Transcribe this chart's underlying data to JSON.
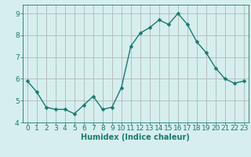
{
  "x": [
    0,
    1,
    2,
    3,
    4,
    5,
    6,
    7,
    8,
    9,
    10,
    11,
    12,
    13,
    14,
    15,
    16,
    17,
    18,
    19,
    20,
    21,
    22,
    23
  ],
  "y": [
    5.9,
    5.4,
    4.7,
    4.6,
    4.6,
    4.4,
    4.8,
    5.2,
    4.6,
    4.7,
    5.6,
    7.5,
    8.1,
    8.35,
    8.7,
    8.5,
    9.0,
    8.5,
    7.7,
    7.2,
    6.5,
    6.0,
    5.8,
    5.9
  ],
  "line_color": "#1a7a6e",
  "marker": "D",
  "marker_size": 2.5,
  "bg_color": "#d6eeee",
  "grid_color": "#b0b8b8",
  "xlabel": "Humidex (Indice chaleur)",
  "ylim": [
    4,
    9.4
  ],
  "xlim": [
    -0.5,
    23.5
  ],
  "yticks": [
    4,
    5,
    6,
    7,
    8,
    9
  ],
  "xticks": [
    0,
    1,
    2,
    3,
    4,
    5,
    6,
    7,
    8,
    9,
    10,
    11,
    12,
    13,
    14,
    15,
    16,
    17,
    18,
    19,
    20,
    21,
    22,
    23
  ],
  "tick_color": "#1a7a6e",
  "label_color": "#1a7a6e",
  "font_size_xlabel": 7,
  "font_size_ticks": 6.5
}
